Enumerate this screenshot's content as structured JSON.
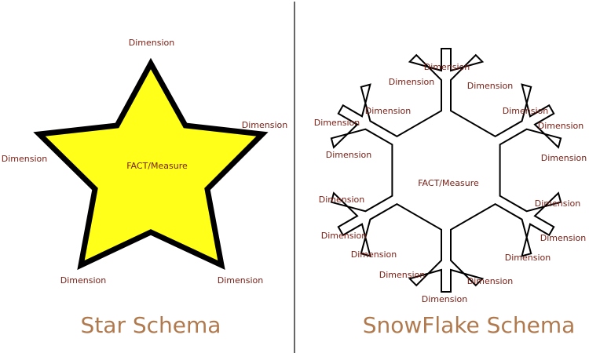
{
  "colors": {
    "label": "#7a1c12",
    "caption": "#b07a4e",
    "star_fill": "#ffff1a",
    "outline": "#000000",
    "divider": "#000000"
  },
  "star": {
    "center_label": "FACT/Measure",
    "dimensions": [
      "Dimension",
      "Dimension",
      "Dimension",
      "Dimension",
      "Dimension"
    ],
    "caption": "Star Schema"
  },
  "snowflake": {
    "center_label": "FACT/Measure",
    "dimensions": [
      "Dimension",
      "Dimension",
      "Dimension",
      "Dimension",
      "Dimension",
      "Dimension",
      "Dimension",
      "Dimension",
      "Dimension",
      "Dimension",
      "Dimension",
      "Dimension",
      "Dimension",
      "Dimension",
      "Dimension",
      "Dimension",
      "Dimension",
      "Dimension"
    ],
    "caption": "SnowFlake Schema"
  }
}
